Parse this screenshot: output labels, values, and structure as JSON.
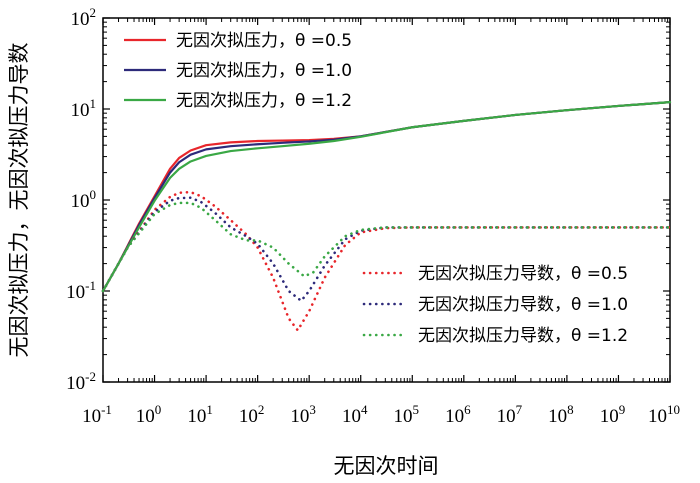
{
  "chart_data": {
    "type": "line",
    "xscale": "log",
    "yscale": "log",
    "xlim": [
      0.1,
      10000000000
    ],
    "ylim": [
      0.01,
      100
    ],
    "xlabel": "无因次时间",
    "ylabel": "无因次拟压力，无因次拟压力导数",
    "x_ticks": [
      {
        "base": "10",
        "exp": "-1"
      },
      {
        "base": "10",
        "exp": "0"
      },
      {
        "base": "10",
        "exp": "1"
      },
      {
        "base": "10",
        "exp": "2"
      },
      {
        "base": "10",
        "exp": "3"
      },
      {
        "base": "10",
        "exp": "4"
      },
      {
        "base": "10",
        "exp": "5"
      },
      {
        "base": "10",
        "exp": "6"
      },
      {
        "base": "10",
        "exp": "7"
      },
      {
        "base": "10",
        "exp": "8"
      },
      {
        "base": "10",
        "exp": "9"
      },
      {
        "base": "10",
        "exp": "10"
      }
    ],
    "y_ticks": [
      {
        "base": "10",
        "exp": "-2"
      },
      {
        "base": "10",
        "exp": "-1"
      },
      {
        "base": "10",
        "exp": "0"
      },
      {
        "base": "10",
        "exp": "1"
      },
      {
        "base": "10",
        "exp": "2"
      }
    ],
    "legend_top": "top-left",
    "legend_bottom": "bottom-right",
    "series": [
      {
        "name": "无因次拟压力，θ =0.5",
        "style": "solid",
        "color": "#e8262b",
        "x": [
          0.1,
          0.2,
          0.5,
          1,
          2,
          3,
          5,
          10,
          30,
          100,
          300,
          1000,
          3000,
          10000,
          100000,
          1000000,
          10000000,
          100000000,
          1000000000,
          10000000000
        ],
        "y": [
          0.1,
          0.2,
          0.55,
          1.1,
          2.2,
          2.9,
          3.5,
          4.0,
          4.3,
          4.45,
          4.5,
          4.55,
          4.7,
          5.0,
          6.3,
          7.4,
          8.6,
          9.7,
          10.8,
          11.9
        ]
      },
      {
        "name": "无因次拟压力，θ =1.0",
        "style": "solid",
        "color": "#2d2a7a",
        "x": [
          0.1,
          0.2,
          0.5,
          1,
          2,
          3,
          5,
          10,
          30,
          100,
          300,
          1000,
          3000,
          10000,
          100000,
          1000000,
          10000000,
          100000000,
          1000000000,
          10000000000
        ],
        "y": [
          0.1,
          0.2,
          0.53,
          1.05,
          2.0,
          2.6,
          3.15,
          3.6,
          3.9,
          4.1,
          4.25,
          4.4,
          4.6,
          5.0,
          6.3,
          7.4,
          8.6,
          9.7,
          10.8,
          11.9
        ]
      },
      {
        "name": "无因次拟压力，θ =1.2",
        "style": "solid",
        "color": "#3aa845",
        "x": [
          0.1,
          0.2,
          0.5,
          1,
          2,
          3,
          5,
          10,
          30,
          100,
          300,
          1000,
          3000,
          10000,
          100000,
          1000000,
          10000000,
          100000000,
          1000000000,
          10000000000
        ],
        "y": [
          0.1,
          0.2,
          0.5,
          0.98,
          1.75,
          2.2,
          2.65,
          3.05,
          3.45,
          3.7,
          3.9,
          4.15,
          4.45,
          4.95,
          6.3,
          7.4,
          8.6,
          9.7,
          10.8,
          11.9
        ]
      },
      {
        "name": "无因次拟压力导数，θ =0.5",
        "style": "dotted",
        "color": "#e8262b",
        "x": [
          0.1,
          0.3,
          1,
          2,
          3,
          5,
          8,
          15,
          30,
          60,
          100,
          200,
          400,
          600,
          1000,
          2000,
          5000,
          10000,
          30000,
          100000,
          1000000000,
          10000000000
        ],
        "y": [
          0.1,
          0.3,
          0.78,
          1.08,
          1.2,
          1.22,
          1.1,
          0.85,
          0.6,
          0.42,
          0.3,
          0.14,
          0.05,
          0.037,
          0.06,
          0.14,
          0.32,
          0.44,
          0.49,
          0.5,
          0.5,
          0.5
        ]
      },
      {
        "name": "无因次拟压力导数，θ =1.0",
        "style": "dotted",
        "color": "#2d2a7a",
        "x": [
          0.1,
          0.3,
          1,
          2,
          3,
          5,
          8,
          15,
          30,
          60,
          100,
          200,
          400,
          700,
          1000,
          2000,
          5000,
          10000,
          30000,
          100000,
          1000000000,
          10000000000
        ],
        "y": [
          0.1,
          0.3,
          0.74,
          0.98,
          1.05,
          1.06,
          0.95,
          0.72,
          0.5,
          0.4,
          0.33,
          0.2,
          0.1,
          0.078,
          0.1,
          0.19,
          0.37,
          0.46,
          0.5,
          0.5,
          0.5,
          0.5
        ]
      },
      {
        "name": "无因次拟压力导数，θ =1.2",
        "style": "dotted",
        "color": "#3aa845",
        "x": [
          0.1,
          0.3,
          1,
          2,
          3,
          5,
          8,
          15,
          30,
          60,
          100,
          200,
          400,
          800,
          1200,
          2000,
          5000,
          10000,
          30000,
          100000,
          1000000000,
          10000000000
        ],
        "y": [
          0.1,
          0.3,
          0.7,
          0.88,
          0.93,
          0.93,
          0.82,
          0.6,
          0.42,
          0.36,
          0.36,
          0.3,
          0.2,
          0.145,
          0.16,
          0.24,
          0.4,
          0.47,
          0.5,
          0.5,
          0.5,
          0.5
        ]
      }
    ]
  }
}
